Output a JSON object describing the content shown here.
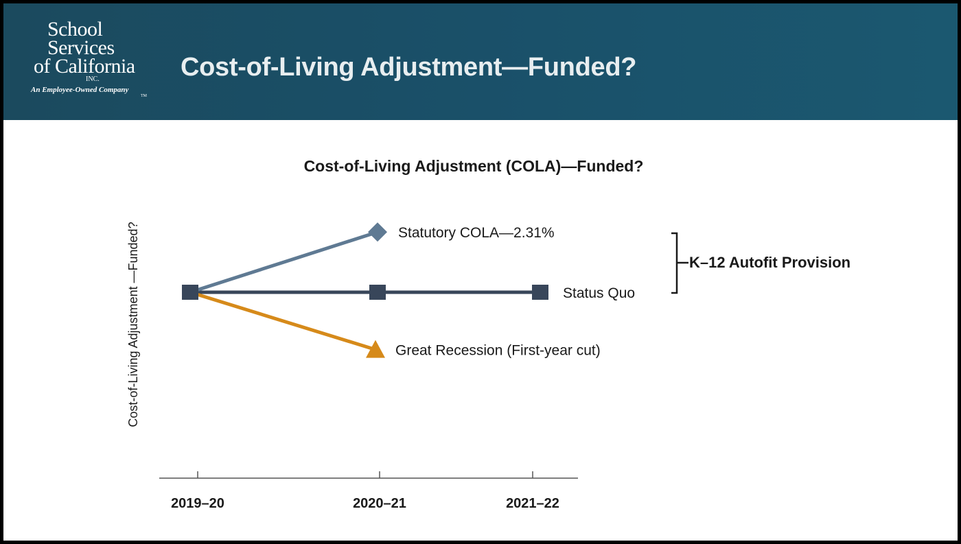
{
  "header": {
    "title": "Cost-of-Living Adjustment—Funded?",
    "logo": {
      "lines": [
        "School",
        "Services",
        "of California"
      ],
      "inc": "INC.",
      "tm": "TM",
      "tagline": "An Employee-Owned Company"
    }
  },
  "colors": {
    "header_bg": "#1a5069",
    "statutory": "#5f7a93",
    "status_quo": "#38465a",
    "recession": "#d68a1a"
  },
  "chart_data": {
    "type": "line",
    "title": "Cost-of-Living Adjustment (COLA)—Funded?",
    "ylabel": "Cost-of-Living Adjustment —Funded?",
    "xlabel": "",
    "categories": [
      "2019–20",
      "2020–21",
      "2021–22"
    ],
    "series": [
      {
        "name": "Statutory COLA—2.31%",
        "marker": "diamond",
        "values": [
          0,
          2.31,
          null
        ]
      },
      {
        "name": "Status Quo",
        "marker": "square",
        "values": [
          0,
          0,
          0
        ]
      },
      {
        "name": "Great Recession (First-year cut)",
        "marker": "triangle",
        "values": [
          0,
          -2.2,
          null
        ]
      }
    ],
    "annotation": "K–12 Autofit Provision",
    "grid": false,
    "legend": "inline-labels"
  }
}
